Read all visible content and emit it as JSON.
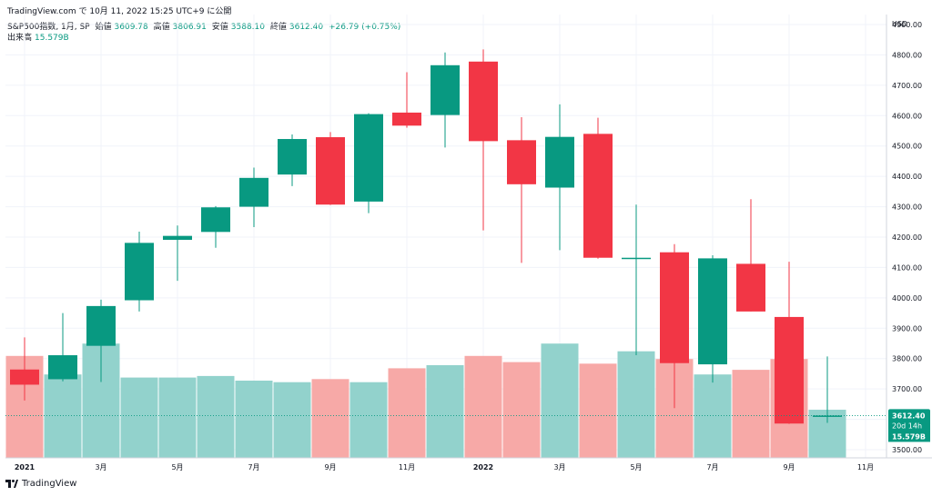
{
  "header": {
    "source": "TradingView.com で 10月 11, 2022 15:25 UTC+9 に公開",
    "symbol": "S&P500指数, 1月, SP",
    "open_label": "始値",
    "open_value": "3609.78",
    "high_label": "高値",
    "high_value": "3806.91",
    "low_label": "安値",
    "low_value": "3588.10",
    "close_label": "終値",
    "close_value": "3612.40",
    "change": "+26.79 (+0.75%)",
    "volume_label": "出来高",
    "volume_value": "15.579B"
  },
  "badges": {
    "price": "3612.40",
    "countdown": "20d 14h",
    "volume": "15.579B"
  },
  "brand": {
    "logo_text": "TradingView"
  },
  "colors": {
    "up": "#089981",
    "down": "#F23645",
    "vol_up": "#92D2CC",
    "vol_down": "#F7A9A7",
    "grid": "#F0F3FA",
    "axis_text": "#131722"
  },
  "chart_data": {
    "type": "candlestick",
    "currency": "USD",
    "y_ticks": [
      "3500.00",
      "3600.00",
      "3700.00",
      "3800.00",
      "3900.00",
      "4000.00",
      "4100.00",
      "4200.00",
      "4300.00",
      "4400.00",
      "4500.00",
      "4600.00",
      "4700.00",
      "4800.00",
      "4900.00"
    ],
    "ylim": [
      3480,
      4960
    ],
    "x_ticks": [
      {
        "index": 0,
        "label": "2021",
        "bold": true
      },
      {
        "index": 2,
        "label": "3月"
      },
      {
        "index": 4,
        "label": "5月"
      },
      {
        "index": 6,
        "label": "7月"
      },
      {
        "index": 8,
        "label": "9月"
      },
      {
        "index": 10,
        "label": "11月"
      },
      {
        "index": 12,
        "label": "2022",
        "bold": true
      },
      {
        "index": 14,
        "label": "3月"
      },
      {
        "index": 16,
        "label": "5月"
      },
      {
        "index": 18,
        "label": "7月"
      },
      {
        "index": 20,
        "label": "9月"
      },
      {
        "index": 22,
        "label": "11月"
      }
    ],
    "candles": [
      {
        "month": "2021-01",
        "open": 3764,
        "high": 3870,
        "low": 3662,
        "close": 3714,
        "volume_b": 33
      },
      {
        "month": "2021-02",
        "open": 3732,
        "high": 3950,
        "low": 3725,
        "close": 3811,
        "volume_b": 27
      },
      {
        "month": "2021-03",
        "open": 3842,
        "high": 3994,
        "low": 3723,
        "close": 3973,
        "volume_b": 37
      },
      {
        "month": "2021-04",
        "open": 3992,
        "high": 4218,
        "low": 3955,
        "close": 4181,
        "volume_b": 26
      },
      {
        "month": "2021-05",
        "open": 4191,
        "high": 4238,
        "low": 4056,
        "close": 4204,
        "volume_b": 26
      },
      {
        "month": "2021-06",
        "open": 4217,
        "high": 4302,
        "low": 4165,
        "close": 4298,
        "volume_b": 26.5
      },
      {
        "month": "2021-07",
        "open": 4300,
        "high": 4429,
        "low": 4233,
        "close": 4395,
        "volume_b": 25
      },
      {
        "month": "2021-08",
        "open": 4406,
        "high": 4538,
        "low": 4368,
        "close": 4523,
        "volume_b": 24.5
      },
      {
        "month": "2021-09",
        "open": 4529,
        "high": 4546,
        "low": 4306,
        "close": 4307,
        "volume_b": 25.5
      },
      {
        "month": "2021-10",
        "open": 4317,
        "high": 4608,
        "low": 4279,
        "close": 4605,
        "volume_b": 24.5
      },
      {
        "month": "2021-11",
        "open": 4610,
        "high": 4743,
        "low": 4560,
        "close": 4567,
        "volume_b": 29
      },
      {
        "month": "2021-12",
        "open": 4602,
        "high": 4808,
        "low": 4495,
        "close": 4766,
        "volume_b": 30
      },
      {
        "month": "2022-01",
        "open": 4778,
        "high": 4818,
        "low": 4222,
        "close": 4516,
        "volume_b": 33
      },
      {
        "month": "2022-02",
        "open": 4519,
        "high": 4595,
        "low": 4115,
        "close": 4374,
        "volume_b": 31
      },
      {
        "month": "2022-03",
        "open": 4363,
        "high": 4637,
        "low": 4157,
        "close": 4530,
        "volume_b": 37
      },
      {
        "month": "2022-04",
        "open": 4540,
        "high": 4593,
        "low": 4129,
        "close": 4132,
        "volume_b": 30.5
      },
      {
        "month": "2022-05",
        "open": 4131,
        "high": 4307,
        "low": 3811,
        "close": 4132,
        "volume_b": 34.5
      },
      {
        "month": "2022-06",
        "open": 4150,
        "high": 4177,
        "low": 3637,
        "close": 3785,
        "volume_b": 32
      },
      {
        "month": "2022-07",
        "open": 3781,
        "high": 4140,
        "low": 3721,
        "close": 4130,
        "volume_b": 27
      },
      {
        "month": "2022-08",
        "open": 4112,
        "high": 4325,
        "low": 3955,
        "close": 3955,
        "volume_b": 28.5
      },
      {
        "month": "2022-09",
        "open": 3937,
        "high": 4119,
        "low": 3585,
        "close": 3586,
        "volume_b": 32
      },
      {
        "month": "2022-10",
        "open": 3609.78,
        "high": 3806.91,
        "low": 3588.1,
        "close": 3612.4,
        "volume_b": 15.579
      }
    ]
  }
}
